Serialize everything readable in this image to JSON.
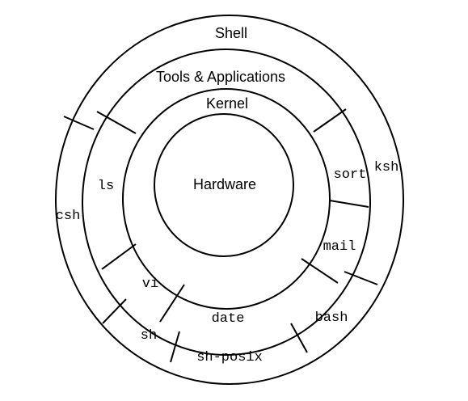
{
  "rings": {
    "hardware": "Hardware",
    "kernel": "Kernel",
    "tools": "Tools & Applications",
    "shell": "Shell"
  },
  "tools": {
    "ls": "ls",
    "sort": "sort",
    "mail": "mail",
    "vi": "vi",
    "date": "date"
  },
  "shells": {
    "csh": "csh",
    "ksh": "ksh",
    "sh": "sh",
    "bash": "bash",
    "sh_posix": "sh-posix"
  }
}
